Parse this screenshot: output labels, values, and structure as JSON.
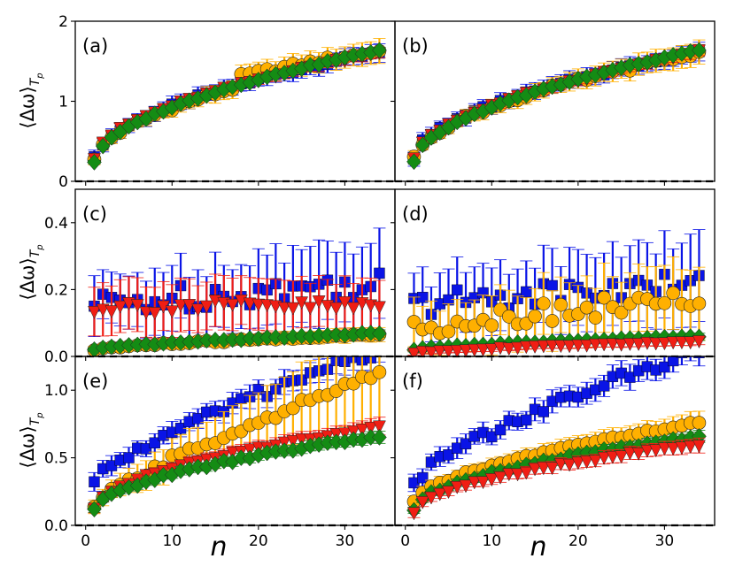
{
  "figure": {
    "ylabel": "⟨Δω⟩",
    "ylabel_sub": "T",
    "ylabel_subsub": "p",
    "xlabel": "n"
  },
  "colors": {
    "blue": "#0a14e6",
    "orange": "#ffb000",
    "red": "#f01e14",
    "green": "#148c14",
    "dashed": "#000000"
  },
  "chart_data": [
    {
      "type": "scatter",
      "panel": "a",
      "label": "(a)",
      "x_range": [
        1,
        34
      ],
      "ylim": [
        0,
        2
      ],
      "xticks": [
        0,
        10,
        20,
        30
      ],
      "yticks": [
        0,
        1,
        2
      ],
      "ytick_labels": [
        "0",
        "1",
        "2"
      ],
      "xtick_labels": [],
      "hline": 0,
      "series": [
        {
          "name": "blue-squares",
          "marker": "square",
          "color": "blue",
          "start": 0.28,
          "end": 1.62,
          "power": 0.55,
          "noise": 0.03,
          "err_start": 0.08,
          "err_end": 0.1
        },
        {
          "name": "orange-circles",
          "marker": "circle",
          "color": "orange",
          "start": 0.26,
          "end": 1.6,
          "power": 0.55,
          "noise": 0.03,
          "err_start": 0.06,
          "err_end": 0.14,
          "jump_at": 18,
          "jump": 0.12
        },
        {
          "name": "red-triangles",
          "marker": "triangle",
          "color": "red",
          "start": 0.3,
          "end": 1.62,
          "power": 0.55,
          "noise": 0.02,
          "err_start": 0.05,
          "err_end": 0.06
        },
        {
          "name": "green-diamonds",
          "marker": "diamond",
          "color": "green",
          "start": 0.24,
          "end": 1.64,
          "power": 0.55,
          "noise": 0.01,
          "err_start": 0.02,
          "err_end": 0.03
        }
      ]
    },
    {
      "type": "scatter",
      "panel": "b",
      "label": "(b)",
      "x_range": [
        1,
        34
      ],
      "ylim": [
        0,
        2
      ],
      "xticks": [
        0,
        10,
        20,
        30
      ],
      "yticks": [
        0,
        1,
        2
      ],
      "ytick_labels": [],
      "xtick_labels": [],
      "hline": 0,
      "series": [
        {
          "name": "blue-squares",
          "marker": "square",
          "color": "blue",
          "start": 0.3,
          "end": 1.62,
          "power": 0.55,
          "noise": 0.03,
          "err_start": 0.08,
          "err_end": 0.1
        },
        {
          "name": "orange-circles",
          "marker": "circle",
          "color": "orange",
          "start": 0.28,
          "end": 1.6,
          "power": 0.55,
          "noise": 0.03,
          "err_start": 0.06,
          "err_end": 0.14
        },
        {
          "name": "red-triangles",
          "marker": "triangle",
          "color": "red",
          "start": 0.3,
          "end": 1.62,
          "power": 0.55,
          "noise": 0.02,
          "err_start": 0.05,
          "err_end": 0.06
        },
        {
          "name": "green-diamonds",
          "marker": "diamond",
          "color": "green",
          "start": 0.24,
          "end": 1.64,
          "power": 0.55,
          "noise": 0.01,
          "err_start": 0.02,
          "err_end": 0.03
        }
      ]
    },
    {
      "type": "scatter",
      "panel": "c",
      "label": "(c)",
      "x_range": [
        1,
        34
      ],
      "ylim": [
        0,
        0.5
      ],
      "xticks": [
        0,
        10,
        20,
        30
      ],
      "yticks": [
        0,
        0.2,
        0.4
      ],
      "ytick_labels": [
        "0.0",
        "0.2",
        "0.4"
      ],
      "xtick_labels": [],
      "hline": 0,
      "series": [
        {
          "name": "blue-squares",
          "marker": "square",
          "color": "blue",
          "start": 0.15,
          "end": 0.22,
          "power": 0.8,
          "noise": 0.04,
          "err_start": 0.07,
          "err_end": 0.12
        },
        {
          "name": "red-triangles",
          "marker": "triangle",
          "color": "red",
          "start": 0.15,
          "end": 0.15,
          "power": 1.0,
          "noise": 0.02,
          "err_start": 0.07,
          "err_end": 0.07
        },
        {
          "name": "orange-circles",
          "marker": "circle",
          "color": "orange",
          "start": 0.02,
          "end": 0.065,
          "power": 0.7,
          "noise": 0.004,
          "err_start": 0.01,
          "err_end": 0.02
        },
        {
          "name": "green-diamonds",
          "marker": "diamond",
          "color": "green",
          "start": 0.02,
          "end": 0.07,
          "power": 0.7,
          "noise": 0.002,
          "err_start": 0.005,
          "err_end": 0.01
        }
      ]
    },
    {
      "type": "scatter",
      "panel": "d",
      "label": "(d)",
      "x_range": [
        1,
        34
      ],
      "ylim": [
        0,
        0.5
      ],
      "xticks": [
        0,
        10,
        20,
        30
      ],
      "yticks": [
        0,
        0.2,
        0.4
      ],
      "ytick_labels": [],
      "xtick_labels": [],
      "hline": 0,
      "series": [
        {
          "name": "blue-squares",
          "marker": "square",
          "color": "blue",
          "start": 0.15,
          "end": 0.22,
          "power": 0.8,
          "noise": 0.04,
          "err_start": 0.07,
          "err_end": 0.12
        },
        {
          "name": "orange-circles",
          "marker": "circle",
          "color": "orange",
          "start": 0.08,
          "end": 0.17,
          "power": 0.7,
          "noise": 0.03,
          "err_start": 0.06,
          "err_end": 0.1
        },
        {
          "name": "green-diamonds",
          "marker": "diamond",
          "color": "green",
          "start": 0.02,
          "end": 0.06,
          "power": 0.7,
          "noise": 0.002,
          "err_start": 0.005,
          "err_end": 0.01
        },
        {
          "name": "red-triangles",
          "marker": "triangle",
          "color": "red",
          "start": 0.01,
          "end": 0.045,
          "power": 0.7,
          "noise": 0.002,
          "err_start": 0.005,
          "err_end": 0.01
        }
      ]
    },
    {
      "type": "scatter",
      "panel": "e",
      "label": "(e)",
      "x_range": [
        1,
        34
      ],
      "ylim": [
        0,
        1.25
      ],
      "xticks": [
        0,
        10,
        20,
        30
      ],
      "yticks": [
        0,
        0.5,
        1.0
      ],
      "ytick_labels": [
        "0.0",
        "0.5",
        "1.0"
      ],
      "xtick_labels": [
        "0",
        "10",
        "20",
        "30"
      ],
      "hline": 0,
      "series": [
        {
          "name": "blue-squares",
          "marker": "square",
          "color": "blue",
          "start": 0.32,
          "end": 1.3,
          "power": 0.75,
          "noise": 0.04,
          "err_start": 0.05,
          "err_end": 0.08,
          "clip": true
        },
        {
          "name": "orange-circles",
          "marker": "circle",
          "color": "orange",
          "start": 0.14,
          "end": 1.12,
          "power": 0.8,
          "noise": 0.03,
          "err_start": 0.04,
          "err_end": 0.35
        },
        {
          "name": "red-triangles",
          "marker": "triangle",
          "color": "red",
          "start": 0.13,
          "end": 0.73,
          "power": 0.55,
          "noise": 0.01,
          "err_start": 0.03,
          "err_end": 0.06
        },
        {
          "name": "green-diamonds",
          "marker": "diamond",
          "color": "green",
          "start": 0.11,
          "end": 0.66,
          "power": 0.55,
          "noise": 0.01,
          "err_start": 0.02,
          "err_end": 0.04
        }
      ]
    },
    {
      "type": "scatter",
      "panel": "f",
      "label": "(f)",
      "x_range": [
        1,
        34
      ],
      "ylim": [
        0,
        1.25
      ],
      "xticks": [
        0,
        10,
        20,
        30
      ],
      "yticks": [
        0,
        0.5,
        1.0
      ],
      "ytick_labels": [],
      "xtick_labels": [
        "0",
        "10",
        "20",
        "30"
      ],
      "hline": 0,
      "series": [
        {
          "name": "blue-squares",
          "marker": "square",
          "color": "blue",
          "start": 0.32,
          "end": 1.3,
          "power": 0.75,
          "noise": 0.04,
          "err_start": 0.05,
          "err_end": 0.08,
          "clip": true
        },
        {
          "name": "orange-circles",
          "marker": "circle",
          "color": "orange",
          "start": 0.17,
          "end": 0.76,
          "power": 0.6,
          "noise": 0.01,
          "err_start": 0.04,
          "err_end": 0.08
        },
        {
          "name": "green-diamonds",
          "marker": "diamond",
          "color": "green",
          "start": 0.12,
          "end": 0.66,
          "power": 0.55,
          "noise": 0.01,
          "err_start": 0.02,
          "err_end": 0.04
        },
        {
          "name": "red-triangles",
          "marker": "triangle",
          "color": "red",
          "start": 0.1,
          "end": 0.6,
          "power": 0.55,
          "noise": 0.01,
          "err_start": 0.03,
          "err_end": 0.05
        }
      ]
    }
  ]
}
